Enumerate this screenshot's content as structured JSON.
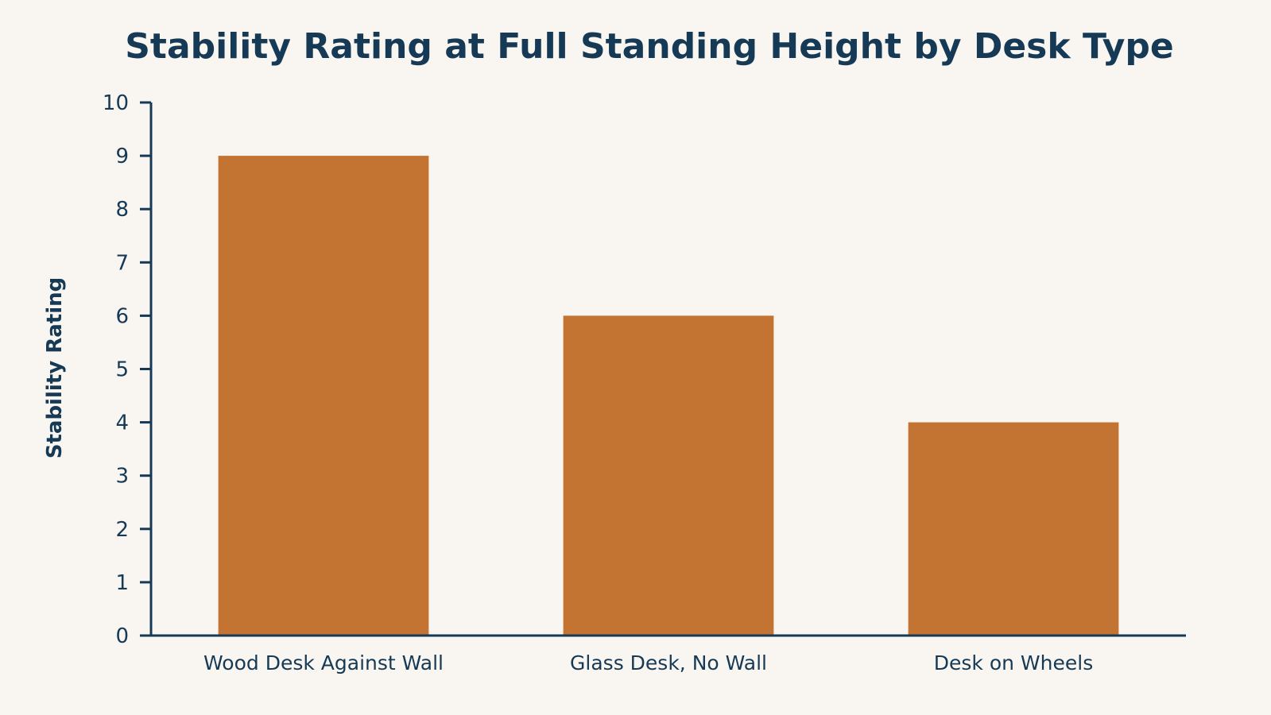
{
  "colors": {
    "background": "#f9f6f1",
    "bar": "#c47432",
    "text": "#163a56",
    "axis": "#163a56"
  },
  "chart_data": {
    "type": "bar",
    "title": "Stability Rating at Full Standing Height by Desk Type",
    "xlabel": "",
    "ylabel": "Stability Rating",
    "categories": [
      "Wood Desk Against Wall",
      "Glass Desk, No Wall",
      "Desk on Wheels"
    ],
    "values": [
      9,
      6,
      4
    ],
    "ylim": [
      0,
      10
    ],
    "yticks": [
      "0",
      "1",
      "2",
      "3",
      "4",
      "5",
      "6",
      "7",
      "8",
      "9",
      "10"
    ],
    "grid": false,
    "legend": "none"
  }
}
